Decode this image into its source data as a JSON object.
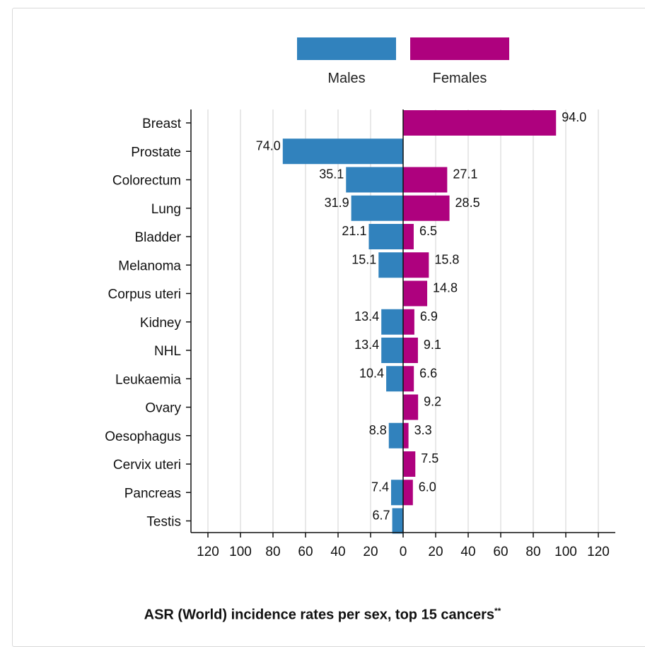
{
  "legend": {
    "males_label": "Males",
    "females_label": "Females",
    "males_color": "#3182bd",
    "females_color": "#ae017e"
  },
  "footer": {
    "title": "ASR (World) incidence rates per sex, top 15 cancers",
    "footnote_mark": "**"
  },
  "chart_data": {
    "type": "bar",
    "orientation": "horizontal-population-pyramid",
    "title": "ASR (World) incidence rates per sex, top 15 cancers",
    "categories": [
      "Breast",
      "Prostate",
      "Colorectum",
      "Lung",
      "Bladder",
      "Melanoma",
      "Corpus uteri",
      "Kidney",
      "NHL",
      "Leukaemia",
      "Ovary",
      "Oesophagus",
      "Cervix uteri",
      "Pancreas",
      "Testis"
    ],
    "series": [
      {
        "name": "Males",
        "color": "#3182bd",
        "values": [
          null,
          74.0,
          35.1,
          31.9,
          21.1,
          15.1,
          null,
          13.4,
          13.4,
          10.4,
          null,
          8.8,
          null,
          7.4,
          6.7
        ],
        "labels": [
          "",
          "74.0",
          "35.1",
          "31.9",
          "21.1",
          "15.1",
          "",
          "13.4",
          "13.4",
          "10.4",
          "",
          "8.8",
          "",
          "7.4",
          "6.7"
        ]
      },
      {
        "name": "Females",
        "color": "#ae017e",
        "values": [
          94.0,
          null,
          27.1,
          28.5,
          6.5,
          15.8,
          14.8,
          6.9,
          9.1,
          6.6,
          9.2,
          3.3,
          7.5,
          6.0,
          null
        ],
        "labels": [
          "94.0",
          "",
          "27.1",
          "28.5",
          "6.5",
          "15.8",
          "14.8",
          "6.9",
          "9.1",
          "6.6",
          "9.2",
          "3.3",
          "7.5",
          "6.0",
          ""
        ]
      }
    ],
    "x_ticks": [
      "120",
      "100",
      "80",
      "60",
      "40",
      "20",
      "0",
      "20",
      "40",
      "60",
      "80",
      "100",
      "120"
    ],
    "xlim": [
      -120,
      120
    ],
    "grid": true,
    "legend_position": "top"
  }
}
